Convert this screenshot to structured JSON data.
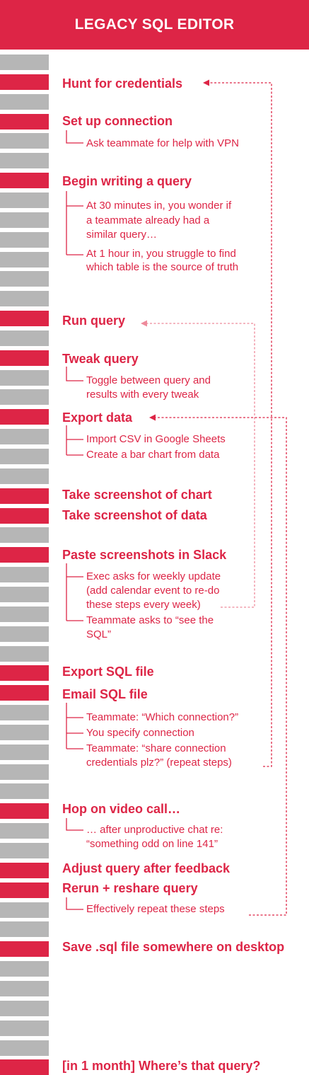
{
  "title": "LEGACY SQL EDITOR",
  "steps": [
    {
      "id": "hunt",
      "label": "Hunt for credentials",
      "subs": []
    },
    {
      "id": "setup",
      "label": "Set up connection",
      "subs": [
        "Ask teammate for help with VPN"
      ]
    },
    {
      "id": "begin",
      "label": "Begin writing a query",
      "subs": [
        "At 30 minutes in, you wonder if\na teammate already had a\nsimilar query…",
        "At 1 hour in, you struggle to find\nwhich table is the source of truth"
      ]
    },
    {
      "id": "run",
      "label": "Run query",
      "subs": []
    },
    {
      "id": "tweak",
      "label": "Tweak query",
      "subs": [
        "Toggle between query and\nresults with every tweak"
      ]
    },
    {
      "id": "export",
      "label": "Export data",
      "subs": [
        "Import CSV in Google Sheets",
        "Create a bar chart from data"
      ]
    },
    {
      "id": "shotchart",
      "label": "Take screenshot of chart",
      "subs": []
    },
    {
      "id": "shotdata",
      "label": "Take screenshot of data",
      "subs": []
    },
    {
      "id": "paste",
      "label": "Paste screenshots in Slack",
      "subs": [
        "Exec asks for weekly update\n(add calendar event to re-do\nthese steps every week)",
        "Teammate asks to “see the\nSQL”"
      ]
    },
    {
      "id": "exportsql",
      "label": "Export SQL file",
      "subs": []
    },
    {
      "id": "emailsql",
      "label": "Email SQL file",
      "subs": [
        "Teammate: “Which connection?”",
        "You specify connection",
        "Teammate: “share connection\n credentials plz?”  (repeat steps)"
      ]
    },
    {
      "id": "hop",
      "label": "Hop on video call…",
      "subs": [
        "… after unproductive chat re:\n“something odd on line 141”"
      ]
    },
    {
      "id": "adjust",
      "label": "Adjust query after feedback",
      "subs": []
    },
    {
      "id": "rerun",
      "label": "Rerun + reshare query",
      "subs": [
        "Effectively repeat these steps"
      ]
    },
    {
      "id": "save",
      "label": "Save .sql file somewhere on desktop",
      "subs": []
    },
    {
      "id": "month",
      "label": "[in 1 month] Where’s that query?",
      "subs": []
    }
  ],
  "colors": {
    "accent": "#dd2546",
    "accent_light": "#ee8a9b",
    "bar_gray": "#b6b6b6",
    "header_text": "#ffffff"
  }
}
